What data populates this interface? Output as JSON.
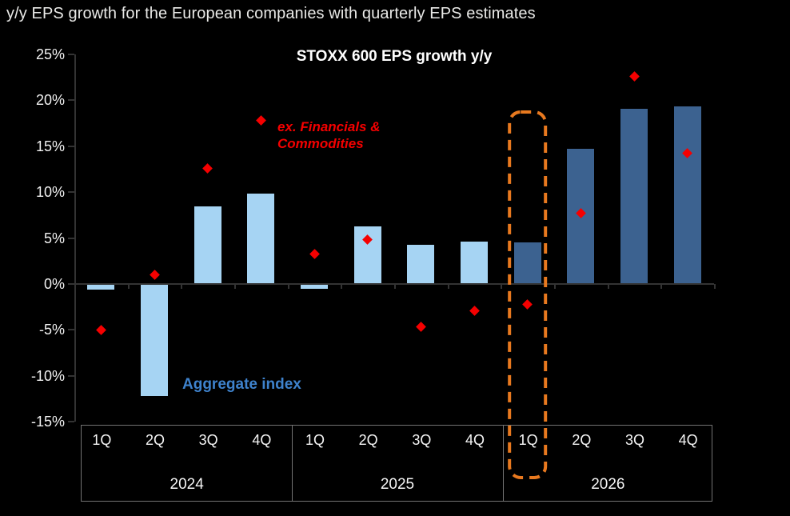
{
  "page_title": "y/y EPS growth for the European companies with quarterly EPS estimates",
  "annotations": {
    "ex_financials_line1": "ex. Financials &",
    "ex_financials_line2": "Commodities",
    "aggregate": "Aggregate index"
  },
  "colors": {
    "background": "#000000",
    "bar_light": "#A6D4F3",
    "bar_dark": "#3C6290",
    "marker_red": "#F50000",
    "highlight_orange": "#E8791F",
    "axis_line": "#333333",
    "text_primary": "#F2F2F2",
    "aggregate_label_blue": "#3E82CC",
    "ex_financials_label_red": "#F40000",
    "table_border": "#737373"
  },
  "chart_data": {
    "type": "bar",
    "title": "STOXX 600 EPS growth y/y",
    "x_groups": [
      {
        "year": "2024",
        "quarters": [
          "1Q",
          "2Q",
          "3Q",
          "4Q"
        ]
      },
      {
        "year": "2025",
        "quarters": [
          "1Q",
          "2Q",
          "3Q",
          "4Q"
        ]
      },
      {
        "year": "2026",
        "quarters": [
          "1Q",
          "2Q",
          "3Q",
          "4Q"
        ]
      }
    ],
    "series": [
      {
        "name": "Aggregate index",
        "type": "bar",
        "values": [
          -0.6,
          -12.2,
          8.4,
          9.8,
          -0.5,
          6.3,
          4.3,
          4.6,
          4.5,
          14.7,
          19.1,
          19.3
        ],
        "point_colors": [
          "light",
          "light",
          "light",
          "light",
          "light",
          "light",
          "light",
          "light",
          "dark",
          "dark",
          "dark",
          "dark"
        ]
      },
      {
        "name": "ex. Financials & Commodities",
        "type": "scatter",
        "marker": "diamond",
        "values": [
          -5.0,
          1.0,
          12.6,
          17.8,
          3.3,
          4.8,
          -4.7,
          -2.9,
          -2.2,
          7.7,
          22.6,
          14.2
        ]
      }
    ],
    "ylim": [
      -15,
      25
    ],
    "ytick_step": 5,
    "ytick_suffix": "%",
    "ytick_labels": [
      "25%",
      "20%",
      "15%",
      "10%",
      "5%",
      "0%",
      "-5%",
      "-10%",
      "-15%"
    ],
    "grid": false,
    "legend_position": "inline-annotations",
    "highlight": {
      "year": "2026",
      "quarter": "1Q",
      "category_index": 8,
      "style": "dashed-rounded-box"
    }
  }
}
